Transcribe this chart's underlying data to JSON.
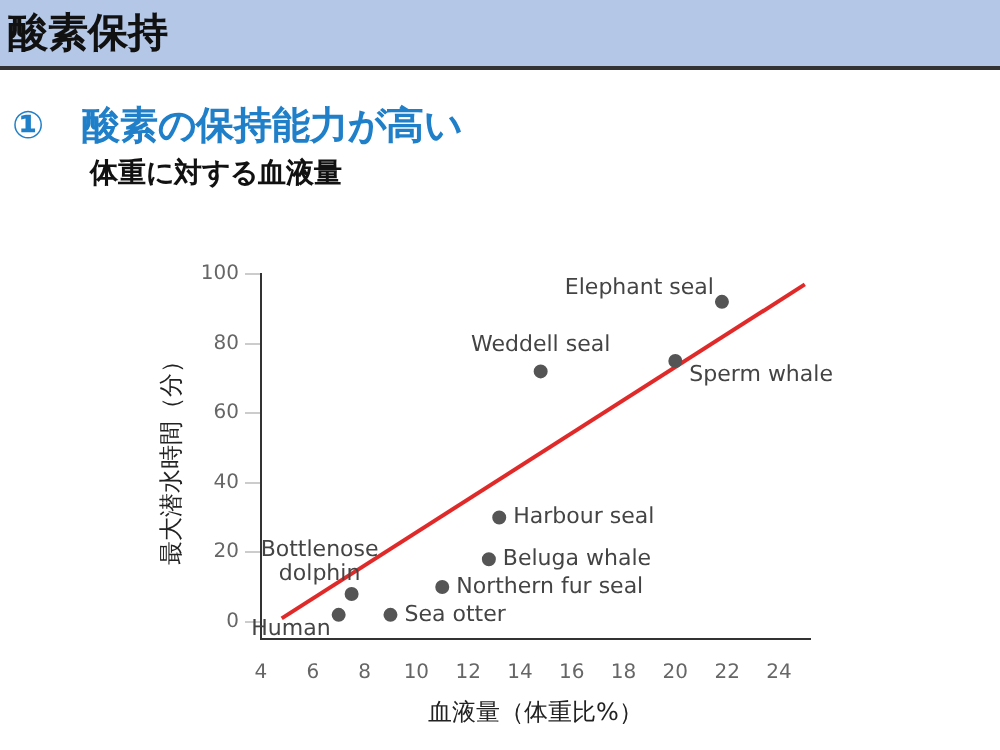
{
  "chart_data": {
    "type": "scatter",
    "title": "酸素保持",
    "subtitle": "①　酸素の保持能力が高い",
    "xlabel": "血液量（体重比%）",
    "ylabel": "最大潜水時間（分）",
    "x": [
      7,
      7.5,
      9,
      11,
      12.8,
      13.2,
      14.8,
      20,
      21.8
    ],
    "series": [
      {
        "color": "#555555",
        "values": [
          2,
          8,
          2,
          10,
          18,
          30,
          72,
          75,
          92
        ]
      },
      {
        "type": "line",
        "color": "#e02a2a",
        "x": [
          4.8,
          25
        ],
        "values": [
          1,
          97
        ],
        "marker": "none"
      }
    ],
    "xlim": [
      4,
      25.2
    ],
    "xticks": [
      4,
      6,
      8,
      10,
      12,
      14,
      16,
      18,
      20,
      22,
      24
    ],
    "ylim": [
      -5,
      100
    ],
    "yticks": [
      0,
      20,
      40,
      60,
      80,
      100
    ],
    "grid": false,
    "legend": false,
    "marker": "circle",
    "annotations": [
      "体重に対する血液量",
      {
        "text": "Human",
        "x": 7,
        "y": 2
      },
      {
        "text": "Bottlenose dolphin",
        "x": 7.5,
        "y": 8
      },
      {
        "text": "Sea otter",
        "x": 9,
        "y": 2
      },
      {
        "text": "Northern fur seal",
        "x": 11,
        "y": 10
      },
      {
        "text": "Beluga whale",
        "x": 12.8,
        "y": 18
      },
      {
        "text": "Harbour seal",
        "x": 13.2,
        "y": 30
      },
      {
        "text": "Weddell seal",
        "x": 14.8,
        "y": 72
      },
      {
        "text": "Sperm whale",
        "x": 20,
        "y": 75
      },
      {
        "text": "Elephant seal",
        "x": 21.8,
        "y": 92
      }
    ]
  }
}
